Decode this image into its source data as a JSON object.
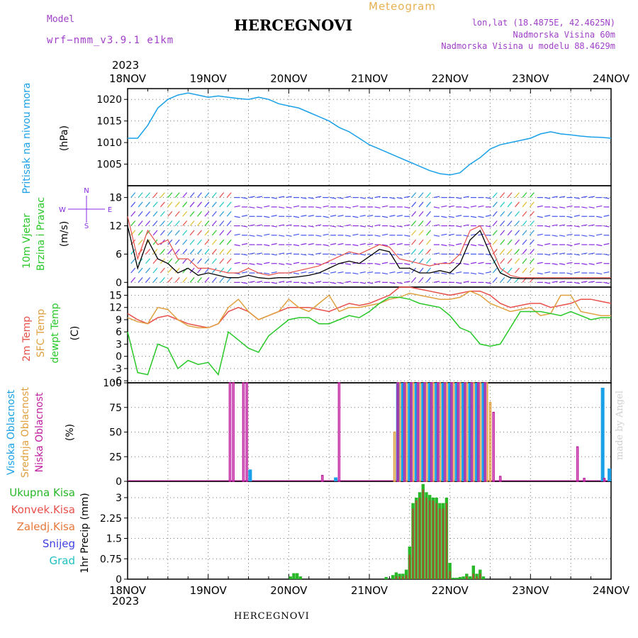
{
  "header": {
    "model_label": "Model",
    "model_name": "wrf−nmm_v3.9.1  e1km",
    "title": "HERCEGNOVI",
    "meteogram": "Meteogram",
    "lonlat": "lon,lat (18.4875E, 42.4625N)",
    "altitude": "Nadmorska Visina 60m",
    "model_altitude": "Nadmorska Visina u modelu 88.4629m",
    "year_top": "2023",
    "year_bottom": "2023",
    "bottom_name": "HERCEGNOVI",
    "watermark": "made by Angel"
  },
  "colors": {
    "pressure": "#1aa0e8",
    "temp2m": "#e8504a",
    "sfc_temp": "#e0a040",
    "dewpt": "#28c828",
    "high_cloud": "#1aa0e8",
    "mid_cloud": "#e0a040",
    "low_cloud": "#c020a0",
    "precip_total": "#28b828",
    "precip_conv": "#e8504a",
    "precip_frozen": "#e8783a",
    "snow": "#4040e0",
    "graupel": "#20c0c0",
    "wind_barb": "#8a2be2"
  },
  "chart_data": [
    {
      "type": "line",
      "panel": "pressure",
      "ylabel": [
        "Pritisak na nivou mora",
        "(hPa)"
      ],
      "x_ticks": [
        "18NOV",
        "19NOV",
        "20NOV",
        "21NOV",
        "22NOV",
        "23NOV",
        "24NOV"
      ],
      "x": [
        0,
        3,
        6,
        9,
        12,
        15,
        18,
        21,
        24,
        27,
        30,
        33,
        36,
        39,
        42,
        45,
        48,
        51,
        54,
        57,
        60,
        63,
        66,
        69,
        72,
        75,
        78,
        81,
        84,
        87,
        90,
        93,
        96,
        99,
        102,
        105,
        108,
        111,
        114,
        117,
        120,
        123,
        126,
        129,
        132,
        135,
        138,
        141,
        144
      ],
      "y_ticks": [
        1005,
        1010,
        1015,
        1020
      ],
      "ylim": [
        1000,
        1022.5
      ],
      "series": [
        {
          "values": [
            1011,
            1011,
            1014,
            1018,
            1020,
            1021,
            1021.5,
            1021,
            1020.5,
            1020.8,
            1020.5,
            1020.2,
            1020,
            1020.5,
            1020,
            1019,
            1018.5,
            1018,
            1017,
            1016,
            1015,
            1013.5,
            1012.5,
            1011,
            1009.5,
            1008.5,
            1007.5,
            1006.5,
            1005.5,
            1004.5,
            1003.5,
            1002.8,
            1002.5,
            1003,
            1005,
            1006.5,
            1008.5,
            1009.5,
            1010,
            1010.5,
            1011,
            1012,
            1012.5,
            1012,
            1011.8,
            1011.5,
            1011.3,
            1011.2,
            1011
          ]
        }
      ]
    },
    {
      "type": "line",
      "panel": "wind",
      "ylabel": [
        "10m Vjetar",
        "Brzina i Pravac",
        "(m/s)"
      ],
      "compass": {
        "n": "N",
        "s": "S",
        "w": "W",
        "e": "E"
      },
      "x": [
        0,
        3,
        6,
        9,
        12,
        15,
        18,
        21,
        24,
        27,
        30,
        33,
        36,
        39,
        42,
        45,
        48,
        51,
        54,
        57,
        60,
        63,
        66,
        69,
        72,
        75,
        78,
        81,
        84,
        87,
        90,
        93,
        96,
        99,
        102,
        105,
        108,
        111,
        114,
        117,
        120,
        123,
        126,
        129,
        132,
        135,
        138,
        141,
        144
      ],
      "y_ticks": [
        0,
        6,
        12,
        18
      ],
      "ylim": [
        -1,
        20.5
      ],
      "series": [
        {
          "name": "speed",
          "values": [
            12,
            3,
            9,
            5,
            4,
            2,
            3,
            1.5,
            2,
            1.5,
            1,
            1,
            1.5,
            1,
            0.8,
            1,
            1,
            1.2,
            1.5,
            2,
            3,
            4,
            4.5,
            4,
            5.5,
            7,
            6.5,
            3,
            3,
            2,
            2,
            2.5,
            2,
            4,
            9,
            11,
            6,
            2,
            1,
            0.8,
            0.8,
            0.8,
            0.8,
            0.8,
            0.8,
            0.8,
            0.8,
            0.8,
            0.8
          ]
        },
        {
          "name": "gust",
          "values": [
            14,
            5,
            11,
            8,
            9,
            5,
            5,
            3,
            3,
            2.5,
            2,
            2,
            3,
            2,
            1.5,
            2,
            2,
            2.5,
            3,
            3.5,
            4.5,
            5.5,
            6.5,
            6,
            7,
            8,
            7.5,
            5,
            4.5,
            4,
            3.5,
            4,
            4,
            6,
            11,
            12,
            8,
            3,
            1.5,
            1,
            1,
            1,
            1,
            1,
            1,
            1,
            1,
            1,
            1
          ]
        }
      ]
    },
    {
      "type": "line",
      "panel": "temperature",
      "ylabel": [
        "2m Temp",
        "SFC Temp",
        "dewpt Temp",
        "(C)"
      ],
      "x": [
        0,
        3,
        6,
        9,
        12,
        15,
        18,
        21,
        24,
        27,
        30,
        33,
        36,
        39,
        42,
        45,
        48,
        51,
        54,
        57,
        60,
        63,
        66,
        69,
        72,
        75,
        78,
        81,
        84,
        87,
        90,
        93,
        96,
        99,
        102,
        105,
        108,
        111,
        114,
        117,
        120,
        123,
        126,
        129,
        132,
        135,
        138,
        141,
        144
      ],
      "y_ticks": [
        -6,
        -3,
        0,
        3,
        6,
        9,
        12,
        15
      ],
      "ylim": [
        -6.5,
        17
      ],
      "series": [
        {
          "name": "2m Temp",
          "values": [
            10.5,
            9,
            8,
            9.5,
            10,
            9,
            8,
            7.5,
            7,
            8,
            11,
            12,
            11,
            9,
            10,
            11,
            12,
            12,
            12,
            11.5,
            11,
            12,
            13,
            12.5,
            13,
            14,
            15,
            17,
            17,
            16.5,
            16,
            15.5,
            15,
            15.5,
            16,
            16,
            15,
            13,
            12,
            12.5,
            13,
            13,
            12,
            12.5,
            13,
            14,
            14,
            13.5,
            13
          ]
        },
        {
          "name": "SFC Temp",
          "values": [
            9.5,
            8.5,
            8,
            12,
            11.5,
            9,
            7.5,
            7,
            7,
            8,
            12,
            14,
            11,
            9,
            10,
            11,
            14,
            12,
            11,
            13,
            15,
            11,
            12,
            12,
            12.5,
            13,
            14,
            14.5,
            15.5,
            15,
            14.5,
            14,
            14,
            14.5,
            16,
            15,
            13,
            12,
            11,
            11.5,
            12,
            10,
            10.5,
            15,
            15,
            11,
            10.5,
            10,
            10
          ]
        },
        {
          "name": "dewpt Temp",
          "values": [
            6,
            -4,
            -4.5,
            3,
            2,
            -3,
            -1,
            -2,
            -1.5,
            -4.5,
            6,
            4,
            2,
            1,
            5,
            7,
            9,
            9.5,
            9.5,
            8,
            8,
            9,
            10,
            9.5,
            11,
            13,
            14.5,
            14.5,
            14,
            13,
            12.5,
            12,
            10,
            7,
            6,
            3,
            2.5,
            3,
            7,
            11,
            11,
            11,
            10.5,
            10,
            11,
            10,
            9,
            9.5,
            9.5
          ]
        }
      ]
    },
    {
      "type": "bar",
      "panel": "cloud",
      "ylabel": [
        "Visoka Oblacnost",
        "Srednja Oblacnost",
        "Niska Oblacnost",
        "(%)"
      ],
      "y_ticks": [
        0,
        25,
        50,
        75,
        100
      ],
      "ylim": [
        0,
        100
      ],
      "series": [
        {
          "name": "Visoka Oblacnost",
          "x": [
            36.5,
            62,
            80.5,
            82,
            84,
            86,
            88,
            90,
            92,
            94,
            96,
            98,
            100,
            102,
            104,
            106,
            141.5,
            143.5
          ],
          "values": [
            12,
            4,
            100,
            100,
            100,
            100,
            100,
            100,
            100,
            100,
            100,
            100,
            100,
            100,
            100,
            100,
            95,
            13
          ]
        },
        {
          "name": "Srednja Oblacnost",
          "x": [
            79.5,
            81,
            83,
            85,
            87,
            89,
            91,
            93,
            95,
            97,
            99,
            101,
            103,
            105,
            107,
            108
          ],
          "values": [
            50,
            100,
            100,
            100,
            100,
            100,
            100,
            100,
            100,
            100,
            100,
            100,
            100,
            100,
            100,
            80
          ]
        },
        {
          "name": "Niska Oblacnost",
          "x": [
            30.5,
            31.5,
            34.5,
            35.5,
            58,
            63,
            80.5,
            82.5,
            84.5,
            86.5,
            88.5,
            90.5,
            92.5,
            94.5,
            96.5,
            98.5,
            100.5,
            102.5,
            104.5,
            106.5,
            109,
            111,
            134,
            136,
            142
          ],
          "values": [
            100,
            100,
            100,
            100,
            6,
            100,
            100,
            100,
            100,
            100,
            100,
            100,
            100,
            100,
            100,
            100,
            100,
            100,
            100,
            100,
            70,
            5,
            35,
            3,
            3
          ]
        }
      ]
    },
    {
      "type": "bar",
      "panel": "precip",
      "ylabel": [
        "1hr Precip (mm)"
      ],
      "legend": [
        "Ukupna Kisa",
        "Konvek.Kisa",
        "Zaledj.Kisa",
        "Snijeg",
        "Grad"
      ],
      "y_ticks": [
        "0",
        "0.75",
        "1.5",
        "2.25",
        "3"
      ],
      "ylim": [
        0,
        3.6
      ],
      "x": [
        48.5,
        49.5,
        50.5,
        51.5,
        77,
        79,
        80,
        81,
        82,
        83,
        84,
        85,
        86,
        87,
        88,
        89,
        90,
        91,
        92,
        93,
        94,
        95,
        96,
        97,
        98,
        99,
        100,
        101,
        102,
        103,
        104,
        105,
        106
      ],
      "series": [
        {
          "name": "Ukupna Kisa",
          "values": [
            0.1,
            0.22,
            0.22,
            0.1,
            0.08,
            0.15,
            0.25,
            0.2,
            0.2,
            0.35,
            1.2,
            2.8,
            3.0,
            3.2,
            3.5,
            3.2,
            3.1,
            3.0,
            3.0,
            2.8,
            2.8,
            3.0,
            0.6,
            0.05,
            0.05,
            0.08,
            0.1,
            0.2,
            0.1,
            0.5,
            0.2,
            0.35,
            0.1
          ]
        },
        {
          "name": "Konvek.Kisa",
          "values": [
            0,
            0,
            0,
            0,
            0,
            0,
            0.1,
            0.1,
            0.1,
            0.15,
            0.9,
            2.6,
            2.9,
            3.0,
            3.3,
            3.0,
            2.9,
            2.9,
            2.8,
            2.6,
            2.6,
            2.8,
            0.3,
            0,
            0,
            0,
            0,
            0.1,
            0,
            0.2,
            0.1,
            0.2,
            0
          ]
        }
      ]
    }
  ]
}
